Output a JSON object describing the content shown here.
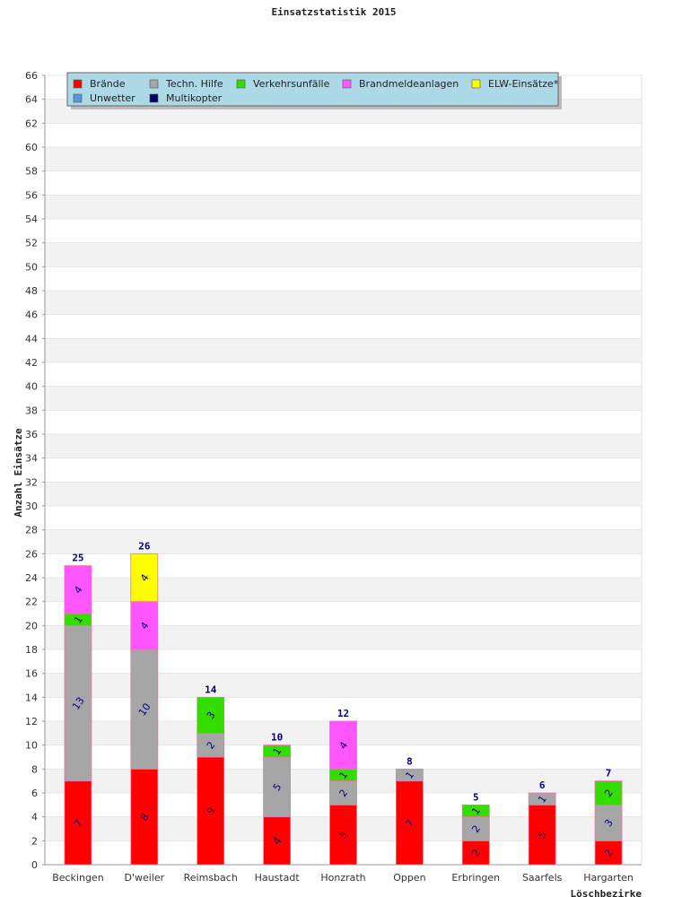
{
  "chart_data": {
    "type": "bar",
    "stacked": true,
    "title": "Einsatzstatistik 2015",
    "xlabel": "Löschbezirke",
    "ylabel": "Anzahl Einsätze",
    "ylim": [
      0,
      66
    ],
    "ytick_step": 2,
    "grid": true,
    "legend_position": "top-left",
    "categories": [
      "Beckingen",
      "D'weiler",
      "Reimsbach",
      "Haustadt",
      "Honzrath",
      "Oppen",
      "Erbringen",
      "Saarfels",
      "Hargarten"
    ],
    "totals": [
      25,
      26,
      14,
      10,
      12,
      8,
      5,
      6,
      7
    ],
    "series": [
      {
        "name": "Brände",
        "color": "#ff0000",
        "values": [
          7,
          8,
          9,
          4,
          5,
          7,
          2,
          5,
          2
        ]
      },
      {
        "name": "Techn. Hilfe",
        "color": "#a6a6a6",
        "values": [
          13,
          10,
          2,
          5,
          2,
          1,
          2,
          1,
          3
        ]
      },
      {
        "name": "Verkehrsunfälle",
        "color": "#33dd00",
        "values": [
          1,
          0,
          3,
          1,
          1,
          0,
          1,
          0,
          2
        ]
      },
      {
        "name": "Brandmeldeanlagen",
        "color": "#ff55ff",
        "values": [
          4,
          4,
          0,
          0,
          4,
          0,
          0,
          0,
          0
        ]
      },
      {
        "name": "ELW-Einsätze*",
        "color": "#ffff00",
        "values": [
          0,
          4,
          0,
          0,
          0,
          0,
          0,
          0,
          0
        ]
      },
      {
        "name": "Unwetter",
        "color": "#5599dd",
        "values": [
          0,
          0,
          0,
          0,
          0,
          0,
          0,
          0,
          0
        ]
      },
      {
        "name": "Multikopter",
        "color": "#000066",
        "values": [
          0,
          0,
          0,
          0,
          0,
          0,
          0,
          0,
          0
        ]
      }
    ],
    "colors": {
      "legend_bg": "#add8e6",
      "segment_label": "#000080",
      "total_label": "#000080",
      "bar_border": "#ff69b4",
      "grid_band": "#f2f2f2",
      "gridline": "#e6e6e6"
    }
  }
}
